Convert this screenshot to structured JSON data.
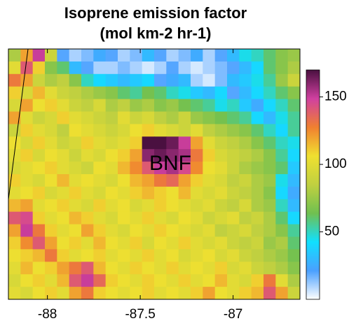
{
  "chart_data": {
    "type": "heatmap",
    "title": "Isoprene emission factor",
    "subtitle": "(mol km-2 hr-1)",
    "annotation": "BNF",
    "xlim": [
      -88.21,
      -86.64
    ],
    "xticks": [
      -88,
      -87.5,
      -87
    ],
    "colorbar": {
      "lim": [
        0,
        170
      ],
      "ticks": [
        50,
        100,
        150
      ]
    },
    "colormap": [
      "#ffffff",
      "#4aa0ff",
      "#10e0ff",
      "#70c050",
      "#c0d040",
      "#f0e030",
      "#f08030",
      "#d040a0",
      "#4a1040"
    ],
    "values": [
      [
        80,
        120,
        150,
        90,
        20,
        10,
        15,
        25,
        20,
        10,
        15,
        30,
        20,
        10,
        15,
        25,
        10,
        20,
        30,
        45,
        50,
        60,
        70,
        75
      ],
      [
        100,
        140,
        110,
        70,
        60,
        30,
        20,
        10,
        10,
        15,
        10,
        5,
        10,
        20,
        10,
        5,
        10,
        15,
        20,
        30,
        40,
        60,
        70,
        80
      ],
      [
        130,
        120,
        90,
        80,
        85,
        70,
        50,
        40,
        35,
        30,
        35,
        40,
        20,
        25,
        30,
        10,
        5,
        15,
        30,
        35,
        45,
        55,
        75,
        90
      ],
      [
        110,
        95,
        115,
        100,
        90,
        85,
        80,
        75,
        70,
        60,
        55,
        65,
        60,
        50,
        45,
        35,
        30,
        40,
        20,
        30,
        40,
        50,
        60,
        70
      ],
      [
        95,
        120,
        105,
        110,
        100,
        90,
        85,
        95,
        80,
        85,
        75,
        80,
        70,
        75,
        65,
        60,
        55,
        45,
        50,
        35,
        25,
        40,
        50,
        60
      ],
      [
        120,
        100,
        90,
        95,
        110,
        100,
        95,
        90,
        85,
        100,
        90,
        95,
        85,
        80,
        90,
        75,
        70,
        65,
        60,
        55,
        40,
        30,
        45,
        55
      ],
      [
        90,
        110,
        100,
        95,
        85,
        105,
        100,
        95,
        90,
        95,
        105,
        110,
        100,
        95,
        90,
        100,
        85,
        80,
        75,
        70,
        60,
        50,
        40,
        55
      ],
      [
        105,
        95,
        110,
        100,
        90,
        95,
        110,
        100,
        95,
        100,
        110,
        170,
        175,
        165,
        150,
        120,
        100,
        90,
        85,
        80,
        70,
        60,
        50,
        45
      ],
      [
        100,
        110,
        95,
        105,
        100,
        90,
        100,
        95,
        105,
        110,
        120,
        160,
        165,
        160,
        155,
        130,
        110,
        95,
        90,
        85,
        80,
        70,
        55,
        40
      ],
      [
        95,
        100,
        105,
        110,
        100,
        95,
        90,
        105,
        100,
        115,
        125,
        140,
        150,
        155,
        145,
        125,
        105,
        100,
        90,
        80,
        75,
        70,
        60,
        35
      ],
      [
        110,
        100,
        95,
        105,
        115,
        100,
        105,
        100,
        95,
        105,
        115,
        120,
        130,
        135,
        120,
        110,
        100,
        95,
        85,
        90,
        80,
        75,
        45,
        30
      ],
      [
        100,
        105,
        110,
        95,
        100,
        110,
        100,
        95,
        105,
        100,
        110,
        115,
        110,
        105,
        115,
        100,
        95,
        100,
        90,
        85,
        80,
        70,
        40,
        25
      ],
      [
        115,
        120,
        100,
        105,
        110,
        100,
        95,
        110,
        100,
        105,
        95,
        100,
        110,
        105,
        100,
        95,
        100,
        90,
        85,
        95,
        80,
        75,
        50,
        30
      ],
      [
        140,
        145,
        110,
        100,
        105,
        115,
        110,
        100,
        95,
        105,
        100,
        110,
        100,
        95,
        105,
        100,
        90,
        95,
        100,
        85,
        90,
        80,
        60,
        40
      ],
      [
        120,
        150,
        130,
        110,
        100,
        105,
        120,
        110,
        100,
        95,
        105,
        100,
        110,
        105,
        100,
        95,
        100,
        85,
        90,
        95,
        85,
        80,
        70,
        55
      ],
      [
        110,
        125,
        140,
        120,
        105,
        110,
        100,
        115,
        105,
        100,
        110,
        95,
        105,
        100,
        110,
        100,
        95,
        100,
        90,
        85,
        90,
        75,
        80,
        60
      ],
      [
        105,
        110,
        115,
        130,
        110,
        100,
        105,
        110,
        100,
        105,
        100,
        110,
        100,
        105,
        95,
        100,
        105,
        95,
        100,
        90,
        85,
        80,
        75,
        65
      ],
      [
        100,
        115,
        105,
        110,
        120,
        130,
        140,
        115,
        105,
        100,
        110,
        105,
        100,
        110,
        100,
        105,
        100,
        110,
        95,
        100,
        90,
        85,
        80,
        70
      ],
      [
        95,
        105,
        110,
        100,
        115,
        140,
        150,
        135,
        110,
        105,
        100,
        110,
        105,
        100,
        110,
        100,
        105,
        115,
        100,
        95,
        110,
        130,
        100,
        80
      ],
      [
        100,
        95,
        105,
        110,
        100,
        120,
        130,
        110,
        105,
        100,
        105,
        110,
        100,
        105,
        100,
        110,
        120,
        105,
        100,
        110,
        115,
        140,
        120,
        90
      ]
    ]
  }
}
